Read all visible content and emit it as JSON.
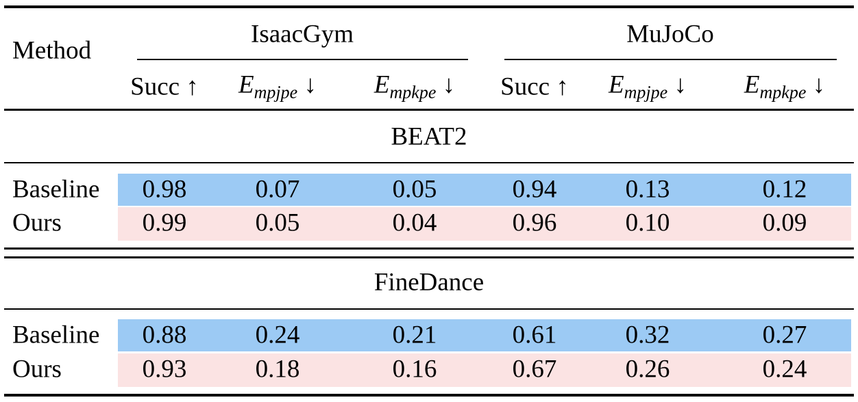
{
  "header": {
    "method": "Method",
    "groups": [
      "IsaacGym",
      "MuJoCo"
    ],
    "columns": [
      {
        "symbol": "Succ",
        "arrow": "↑"
      },
      {
        "symbol": "E",
        "subscript": "mpjpe",
        "arrow": "↓"
      },
      {
        "symbol": "E",
        "subscript": "mpkpe",
        "arrow": "↓"
      },
      {
        "symbol": "Succ",
        "arrow": "↑"
      },
      {
        "symbol": "E",
        "subscript": "mpjpe",
        "arrow": "↓"
      },
      {
        "symbol": "E",
        "subscript": "mpkpe",
        "arrow": "↓"
      }
    ]
  },
  "sections": [
    {
      "title": "BEAT2",
      "rows": [
        {
          "method": "Baseline",
          "values": [
            "0.98",
            "0.07",
            "0.05",
            "0.94",
            "0.13",
            "0.12"
          ]
        },
        {
          "method": "Ours",
          "values": [
            "0.99",
            "0.05",
            "0.04",
            "0.96",
            "0.10",
            "0.09"
          ]
        }
      ]
    },
    {
      "title": "FineDance",
      "rows": [
        {
          "method": "Baseline",
          "values": [
            "0.88",
            "0.24",
            "0.21",
            "0.61",
            "0.32",
            "0.27"
          ]
        },
        {
          "method": "Ours",
          "values": [
            "0.93",
            "0.18",
            "0.16",
            "0.67",
            "0.26",
            "0.24"
          ]
        }
      ]
    }
  ]
}
